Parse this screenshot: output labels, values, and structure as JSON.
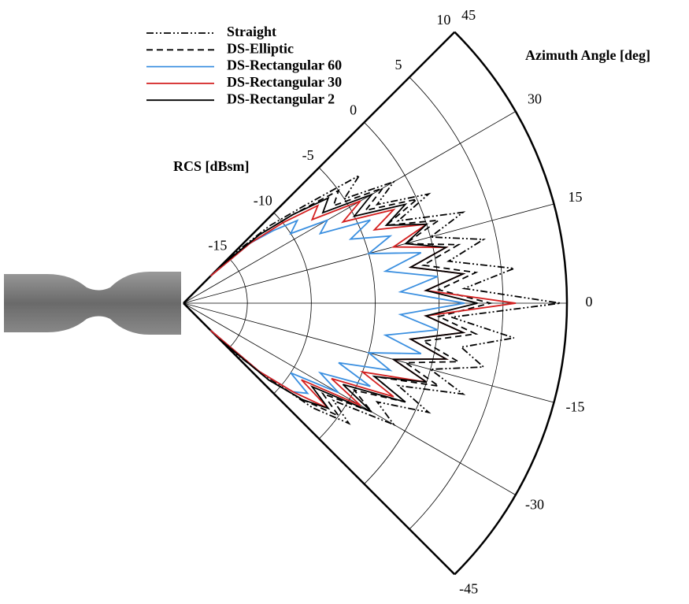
{
  "chart_data": {
    "type": "polar",
    "xlabel": "Azimuth Angle [deg]",
    "ylabel": "RCS [dBsm]",
    "x": [
      -45,
      -42,
      -39,
      -36,
      -33,
      -30,
      -27,
      -24,
      -21,
      -18,
      -15,
      -12,
      -9,
      -6,
      -3,
      0,
      3,
      6,
      9,
      12,
      15,
      18,
      21,
      24,
      27,
      30,
      33,
      36,
      39,
      42,
      45
    ],
    "xlim": [
      -45,
      45
    ],
    "xticks": [
      -45,
      -30,
      -15,
      0,
      15,
      30,
      45
    ],
    "ylim": [
      -20,
      10
    ],
    "yticks": [
      -15,
      -10,
      -5,
      0,
      5,
      10
    ],
    "grid": true,
    "legend": "upper left",
    "series": [
      {
        "name": "Straight",
        "color": "#000000",
        "dash": "dash-dot-dot",
        "values": [
          -15,
          -12,
          -7,
          -4,
          -6,
          -1,
          -3,
          1,
          -2,
          3,
          0,
          4,
          2,
          6,
          1,
          9.5,
          2,
          6,
          1,
          4,
          0,
          3,
          -2,
          1,
          -3,
          -1,
          -5,
          -3,
          -8,
          -11,
          -15
        ]
      },
      {
        "name": "DS-Elliptic",
        "color": "#000000",
        "dash": "dashed",
        "values": [
          -16,
          -11,
          -8,
          -5,
          -7,
          -3,
          -5,
          -1,
          -4,
          1,
          -2,
          2,
          -1,
          3,
          0,
          4,
          0,
          3,
          -1,
          2,
          -2,
          1,
          -3,
          0,
          -4,
          -2,
          -6,
          -5,
          -9,
          -12,
          -16
        ]
      },
      {
        "name": "DS-Rectangular 60",
        "color": "#3a8fe0",
        "dash": "solid",
        "values": [
          -17,
          -12,
          -9,
          -8,
          -10,
          -6,
          -8,
          -4,
          -7,
          -3,
          -5,
          -1,
          -4,
          0,
          -3,
          2,
          -3,
          0,
          -4,
          -1,
          -5,
          -3,
          -6,
          -4,
          -8,
          -7,
          -10,
          -9,
          -11,
          -13,
          -17
        ]
      },
      {
        "name": "DS-Rectangular 30",
        "color": "#d42020",
        "dash": "solid",
        "values": [
          -17,
          -12,
          -9,
          -6,
          -9,
          -4,
          -7,
          -2,
          -5,
          0,
          -3,
          1,
          -2,
          2,
          -1,
          6,
          -1,
          2,
          -2,
          1,
          -3,
          0,
          -4,
          -2,
          -6,
          -4,
          -8,
          -7,
          -10,
          -13,
          -17
        ]
      },
      {
        "name": "DS-Rectangular 2",
        "color": "#000000",
        "dash": "solid",
        "values": [
          -16,
          -11,
          -8,
          -6,
          -8,
          -3,
          -6,
          -1,
          -4,
          0,
          -3,
          1,
          -2,
          2,
          -1,
          3,
          -1,
          2,
          -2,
          1,
          -2,
          0,
          -3,
          -1,
          -5,
          -3,
          -7,
          -6,
          -9,
          -12,
          -16
        ]
      }
    ]
  }
}
